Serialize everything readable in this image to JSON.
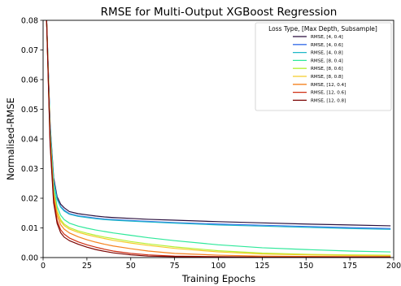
{
  "chart_data": {
    "type": "line",
    "title": "RMSE for Multi-Output XGBoost Regression",
    "xlabel": "Training Epochs",
    "ylabel": "Normalised-RMSE",
    "xlim": [
      0,
      200
    ],
    "ylim": [
      0,
      0.08
    ],
    "x_ticks": [
      "0",
      "25",
      "50",
      "75",
      "100",
      "125",
      "150",
      "175",
      "200"
    ],
    "y_ticks": [
      "0.00",
      "0.01",
      "0.02",
      "0.03",
      "0.04",
      "0.05",
      "0.06",
      "0.07",
      "0.08"
    ],
    "grid": false,
    "legend": {
      "title": "Loss Type, [Max Depth, Subsample]",
      "placement": "top-right"
    },
    "x": [
      2,
      4,
      6,
      8,
      10,
      12,
      15,
      20,
      25,
      30,
      35,
      40,
      50,
      60,
      75,
      100,
      125,
      150,
      175,
      198
    ],
    "series": [
      {
        "name": "RMSE, [4, 0.4]",
        "color": "#2a0f3e",
        "values": [
          0.08,
          0.045,
          0.027,
          0.0205,
          0.018,
          0.0168,
          0.0155,
          0.0148,
          0.0144,
          0.014,
          0.0137,
          0.0135,
          0.0132,
          0.0129,
          0.0126,
          0.0121,
          0.0117,
          0.0113,
          0.011,
          0.0107
        ]
      },
      {
        "name": "RMSE, [4, 0.6]",
        "color": "#3a6fe8",
        "values": [
          0.08,
          0.044,
          0.026,
          0.0198,
          0.0172,
          0.016,
          0.0148,
          0.0141,
          0.0137,
          0.0133,
          0.013,
          0.0128,
          0.0125,
          0.0122,
          0.0118,
          0.0113,
          0.0109,
          0.0105,
          0.0101,
          0.0098
        ]
      },
      {
        "name": "RMSE, [4, 0.8]",
        "color": "#1fb8c8",
        "values": [
          0.08,
          0.044,
          0.0258,
          0.0196,
          0.017,
          0.0157,
          0.0146,
          0.0139,
          0.0135,
          0.0131,
          0.0128,
          0.0126,
          0.0123,
          0.012,
          0.0116,
          0.011,
          0.0106,
          0.0102,
          0.0098,
          0.0095
        ]
      },
      {
        "name": "RMSE, [8, 0.4]",
        "color": "#2ee89a",
        "values": [
          0.08,
          0.042,
          0.024,
          0.0172,
          0.0143,
          0.0128,
          0.0116,
          0.0106,
          0.0099,
          0.0093,
          0.0088,
          0.0083,
          0.0075,
          0.0067,
          0.0057,
          0.0043,
          0.0033,
          0.0027,
          0.0022,
          0.0019
        ]
      },
      {
        "name": "RMSE, [8, 0.6]",
        "color": "#b6f035",
        "values": [
          0.08,
          0.041,
          0.0225,
          0.0158,
          0.0128,
          0.0113,
          0.0101,
          0.009,
          0.0082,
          0.0075,
          0.0069,
          0.0064,
          0.0054,
          0.0046,
          0.0036,
          0.0023,
          0.0015,
          0.0011,
          0.0009,
          0.0008
        ]
      },
      {
        "name": "RMSE, [8, 0.8]",
        "color": "#f5cc2a",
        "values": [
          0.08,
          0.041,
          0.022,
          0.0153,
          0.0123,
          0.0108,
          0.0096,
          0.0085,
          0.0077,
          0.007,
          0.0064,
          0.0058,
          0.0049,
          0.0041,
          0.0031,
          0.0019,
          0.0012,
          0.0009,
          0.0007,
          0.0006
        ]
      },
      {
        "name": "RMSE, [12, 0.4]",
        "color": "#f5821f",
        "values": [
          0.08,
          0.04,
          0.021,
          0.0142,
          0.0111,
          0.0096,
          0.0083,
          0.007,
          0.006,
          0.0052,
          0.0045,
          0.0039,
          0.003,
          0.0022,
          0.0014,
          0.0008,
          0.0005,
          0.0004,
          0.0003,
          0.0003
        ]
      },
      {
        "name": "RMSE, [12, 0.6]",
        "color": "#cf2e12",
        "values": [
          0.08,
          0.039,
          0.0195,
          0.0125,
          0.0094,
          0.0079,
          0.0066,
          0.0053,
          0.0043,
          0.0035,
          0.0028,
          0.0022,
          0.0014,
          0.0009,
          0.0005,
          0.0003,
          0.0002,
          0.0002,
          0.0002,
          0.0002
        ]
      },
      {
        "name": "RMSE, [12, 0.8]",
        "color": "#7a0403",
        "values": [
          0.08,
          0.038,
          0.0185,
          0.0115,
          0.0084,
          0.0069,
          0.0057,
          0.0045,
          0.0035,
          0.0027,
          0.0021,
          0.0016,
          0.0009,
          0.0005,
          0.0003,
          0.0002,
          0.0001,
          0.0001,
          0.0001,
          0.0001
        ]
      }
    ]
  }
}
